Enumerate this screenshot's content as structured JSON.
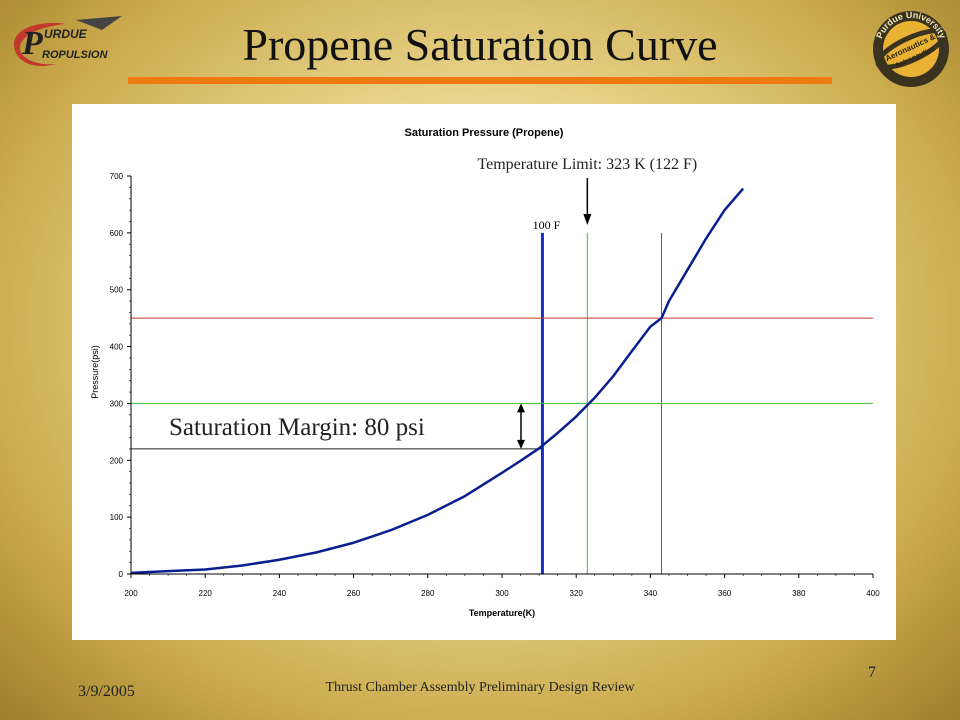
{
  "slide": {
    "title": "Propene Saturation Curve",
    "footer_date": "3/9/2005",
    "footer_center": "Thrust Chamber Assembly Preliminary Design Review",
    "page_number": "7",
    "accent_color": "#f07a12"
  },
  "logos": {
    "left": {
      "icon": "purdue-propulsion-logo",
      "text_top": "URDUE",
      "text_bottom": "ROPULSION",
      "initial": "P"
    },
    "right": {
      "icon": "purdue-aeronautics-astronautics-seal",
      "text_top": "Purdue University",
      "text_middle": "Aeronautics &",
      "text_bottom": "Astronautics"
    }
  },
  "chart_data": {
    "type": "line",
    "title": "Saturation Pressure (Propene)",
    "xlabel": "Temperature(K)",
    "ylabel": "Pressure(psi)",
    "xlim": [
      200,
      400
    ],
    "ylim": [
      0,
      700
    ],
    "xticks": [
      200,
      220,
      240,
      260,
      280,
      300,
      320,
      340,
      360,
      380,
      400
    ],
    "yticks": [
      0,
      100,
      200,
      300,
      400,
      500,
      600,
      700
    ],
    "grid": false,
    "series": [
      {
        "color": "#0a1f8f",
        "x": [
          200,
          210,
          220,
          230,
          240,
          250,
          260,
          270,
          280,
          290,
          300,
          305,
          310,
          315,
          320,
          323,
          325,
          330,
          335,
          340,
          343,
          345,
          350,
          355,
          360,
          365
        ],
        "y": [
          2,
          5,
          8,
          15,
          25,
          38,
          55,
          77,
          104,
          137,
          178,
          199,
          221,
          248,
          277,
          297,
          310,
          348,
          392,
          435,
          450,
          480,
          535,
          590,
          640,
          678
        ]
      }
    ],
    "reference_lines": [
      {
        "orientation": "vertical",
        "x": 310.9,
        "y_range": [
          0,
          600
        ],
        "color": "#1a2fbf",
        "label": "100 F"
      },
      {
        "orientation": "vertical",
        "x": 323,
        "y_range": [
          0,
          600
        ],
        "color": "#3bbf3b",
        "label": ""
      },
      {
        "orientation": "vertical",
        "x": 343,
        "y_range": [
          0,
          600
        ],
        "color": "#c0392b",
        "label": ""
      },
      {
        "orientation": "horizontal",
        "y": 300,
        "color": "#3bbf3b"
      },
      {
        "orientation": "horizontal",
        "y": 450,
        "color": "#c0392b"
      },
      {
        "orientation": "horizontal",
        "y": 220,
        "x_range": [
          200,
          310.9
        ],
        "color": "#222222"
      }
    ],
    "annotations": [
      {
        "text": "Temperature Limit: 323 K (122 F)",
        "arrow_x": 323
      },
      {
        "text": "Saturation Margin: 80 psi",
        "arrow_y_range": [
          220,
          300
        ]
      }
    ]
  }
}
